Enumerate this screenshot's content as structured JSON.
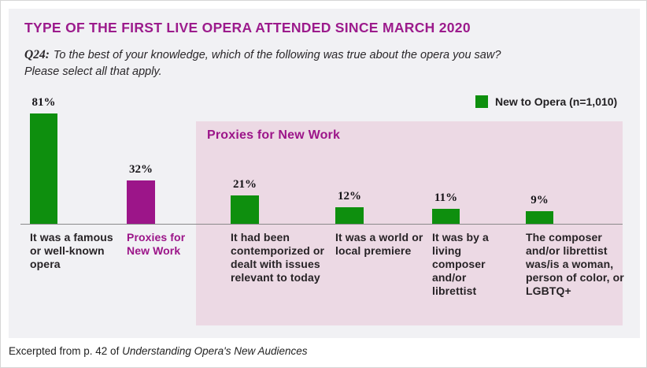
{
  "page": {
    "title": "TYPE OF THE FIRST LIVE OPERA ATTENDED SINCE MARCH 2020",
    "question_prefix": "Q24:",
    "question_line1": "To the best of your knowledge, which of the following was true about the opera you saw?",
    "question_line2": "Please select all that apply.",
    "footer_prefix": "Excerpted from p. 42 of ",
    "footer_source": "Understanding Opera's New Audiences"
  },
  "legend": {
    "swatch_icon": "green-square-swatch",
    "label": "New to Opera (n=1,010)"
  },
  "proxies_box": {
    "label": "Proxies for New Work"
  },
  "colors": {
    "green": "#0e8f0e",
    "magenta": "#9c1589",
    "title_magenta": "#9c1b8c",
    "pink_box": "#ecd9e4",
    "panel_bg": "#f1f1f4",
    "axis": "#8a8a8a",
    "text_dark": "#272326"
  },
  "chart_data": {
    "type": "bar",
    "title": "TYPE OF THE FIRST LIVE OPERA ATTENDED SINCE MARCH 2020",
    "legend_entries": [
      "New to Opera (n=1,010)"
    ],
    "categories": [
      "It was a famous or well-known opera",
      "Proxies for New Work",
      "It had been contemporized or dealt with issues relevant to today",
      "It was a world or local premiere",
      "It was by a living composer and/or librettist",
      "The composer and/or librettist was/is a woman, person of color, or LGBTQ+"
    ],
    "values": [
      81,
      32,
      21,
      12,
      11,
      9
    ],
    "value_labels": [
      "81%",
      "32%",
      "21%",
      "12%",
      "11%",
      "9%"
    ],
    "unit": "%",
    "ylim": [
      0,
      100
    ],
    "bar_color_keys": [
      "green",
      "magenta",
      "green",
      "green",
      "green",
      "green"
    ],
    "label_color_keys": [
      "text_dark",
      "magenta",
      "text_dark",
      "text_dark",
      "text_dark",
      "text_dark"
    ],
    "annotation_box_label": "Proxies for New Work",
    "annotation_box_covers": [
      "It had been contemporized or dealt with issues relevant to today",
      "It was a world or local premiere",
      "It was by a living composer and/or librettist",
      "The composer and/or librettist was/is a woman, person of color, or LGBTQ+"
    ],
    "grid": false,
    "legend_position": "top-right"
  }
}
